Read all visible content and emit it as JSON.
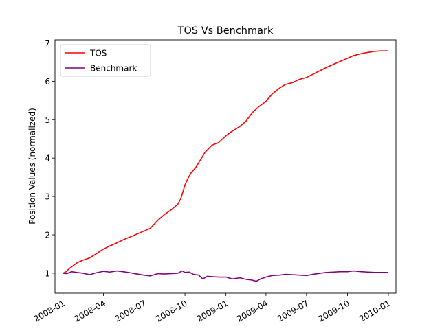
{
  "chart_data": {
    "type": "line",
    "title": "TOS Vs Benchmark",
    "xlabel": "",
    "ylabel": "Position Values (normalized)",
    "x_range": [
      "2007-12-14",
      "2010-01-18"
    ],
    "ylim": [
      0.48,
      7.08
    ],
    "x_ticks": [
      "2008-01",
      "2008-04",
      "2008-07",
      "2008-10",
      "2009-01",
      "2009-04",
      "2009-07",
      "2009-10",
      "2010-01"
    ],
    "x_tick_dates": [
      "2008-01-01",
      "2008-04-01",
      "2008-07-01",
      "2008-10-01",
      "2009-01-01",
      "2009-04-01",
      "2009-07-01",
      "2009-10-01",
      "2010-01-01"
    ],
    "y_ticks": [
      1,
      2,
      3,
      4,
      5,
      6,
      7
    ],
    "x_tick_rotation": 30,
    "grid": false,
    "legend_position": "top-left",
    "series": [
      {
        "name": "TOS",
        "color": "#ff0000",
        "x": [
          "2008-01-01",
          "2008-01-08",
          "2008-01-15",
          "2008-01-22",
          "2008-02-01",
          "2008-02-15",
          "2008-03-01",
          "2008-03-15",
          "2008-04-01",
          "2008-04-15",
          "2008-05-01",
          "2008-05-15",
          "2008-06-01",
          "2008-06-15",
          "2008-07-01",
          "2008-07-15",
          "2008-08-01",
          "2008-08-15",
          "2008-09-01",
          "2008-09-15",
          "2008-09-22",
          "2008-10-01",
          "2008-10-08",
          "2008-10-15",
          "2008-10-25",
          "2008-11-01",
          "2008-11-15",
          "2008-12-01",
          "2008-12-15",
          "2009-01-01",
          "2009-01-15",
          "2009-02-01",
          "2009-02-15",
          "2009-03-01",
          "2009-03-15",
          "2009-04-01",
          "2009-04-15",
          "2009-05-01",
          "2009-05-15",
          "2009-06-01",
          "2009-06-15",
          "2009-07-01",
          "2009-07-15",
          "2009-08-01",
          "2009-08-15",
          "2009-09-01",
          "2009-09-15",
          "2009-10-01",
          "2009-10-15",
          "2009-11-01",
          "2009-11-15",
          "2009-12-01",
          "2009-12-15",
          "2009-12-31"
        ],
        "values": [
          1.0,
          1.04,
          1.12,
          1.18,
          1.27,
          1.34,
          1.4,
          1.5,
          1.63,
          1.71,
          1.79,
          1.87,
          1.95,
          2.02,
          2.1,
          2.17,
          2.38,
          2.52,
          2.66,
          2.8,
          2.95,
          3.3,
          3.48,
          3.62,
          3.75,
          3.88,
          4.15,
          4.34,
          4.4,
          4.58,
          4.7,
          4.82,
          4.96,
          5.18,
          5.33,
          5.48,
          5.67,
          5.82,
          5.92,
          5.97,
          6.05,
          6.1,
          6.18,
          6.28,
          6.36,
          6.45,
          6.52,
          6.6,
          6.67,
          6.72,
          6.75,
          6.78,
          6.79,
          6.79
        ]
      },
      {
        "name": "Benchmark",
        "color": "#800080",
        "x": [
          "2008-01-01",
          "2008-01-10",
          "2008-01-20",
          "2008-02-01",
          "2008-02-15",
          "2008-03-01",
          "2008-03-15",
          "2008-04-01",
          "2008-04-15",
          "2008-05-01",
          "2008-05-15",
          "2008-06-01",
          "2008-06-15",
          "2008-07-01",
          "2008-07-15",
          "2008-08-01",
          "2008-08-15",
          "2008-09-01",
          "2008-09-15",
          "2008-09-25",
          "2008-10-01",
          "2008-10-10",
          "2008-10-20",
          "2008-11-01",
          "2008-11-10",
          "2008-11-20",
          "2008-12-01",
          "2008-12-15",
          "2009-01-01",
          "2009-01-15",
          "2009-02-01",
          "2009-02-15",
          "2009-03-01",
          "2009-03-10",
          "2009-03-20",
          "2009-04-01",
          "2009-04-15",
          "2009-05-01",
          "2009-05-15",
          "2009-06-01",
          "2009-06-15",
          "2009-07-01",
          "2009-07-15",
          "2009-08-01",
          "2009-08-15",
          "2009-09-01",
          "2009-09-15",
          "2009-10-01",
          "2009-10-15",
          "2009-11-01",
          "2009-11-15",
          "2009-12-01",
          "2009-12-15",
          "2009-12-31"
        ],
        "values": [
          1.0,
          0.99,
          1.04,
          1.02,
          1.0,
          0.96,
          1.01,
          1.05,
          1.03,
          1.06,
          1.04,
          1.01,
          0.98,
          0.95,
          0.93,
          0.99,
          0.98,
          0.99,
          1.0,
          1.06,
          1.02,
          1.03,
          0.97,
          0.95,
          0.85,
          0.92,
          0.91,
          0.9,
          0.9,
          0.85,
          0.88,
          0.84,
          0.82,
          0.79,
          0.85,
          0.9,
          0.94,
          0.95,
          0.97,
          0.96,
          0.95,
          0.94,
          0.97,
          1.0,
          1.02,
          1.03,
          1.04,
          1.04,
          1.06,
          1.04,
          1.03,
          1.02,
          1.02,
          1.02
        ]
      }
    ]
  }
}
